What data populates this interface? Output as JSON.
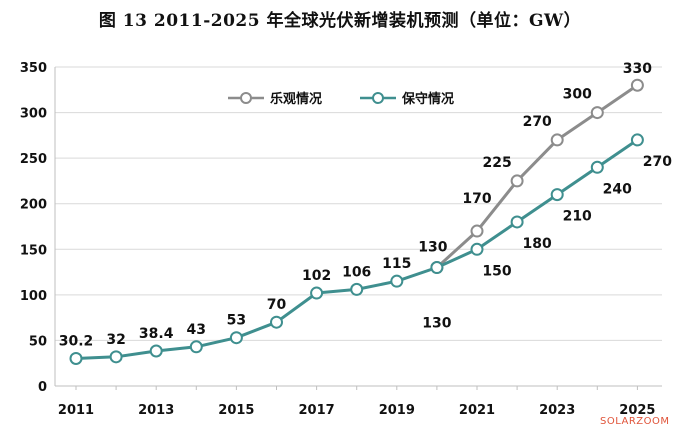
{
  "chart_data": {
    "type": "line",
    "title": "图 13 2011-2025 年全球光伏新增装机预测（单位：GW）",
    "x": [
      2011,
      2012,
      2013,
      2014,
      2015,
      2016,
      2017,
      2018,
      2019,
      2020,
      2021,
      2022,
      2023,
      2024,
      2025
    ],
    "x_tick_labels": [
      "2011",
      "2013",
      "2015",
      "2017",
      "2019",
      "2021",
      "2023",
      "2025"
    ],
    "y_tick_labels": [
      "0",
      "50",
      "100",
      "150",
      "200",
      "250",
      "300",
      "350"
    ],
    "ylim": [
      0,
      350
    ],
    "grid": "horizontal",
    "legend_position": "top-center",
    "series": [
      {
        "name": "乐观情况",
        "color": "#8c8c8c",
        "x": [
          2020,
          2021,
          2022,
          2023,
          2024,
          2025
        ],
        "values": [
          130,
          170,
          225,
          270,
          300,
          330
        ],
        "labels": [
          "",
          "170",
          "225",
          "270",
          "300",
          "330"
        ]
      },
      {
        "name": "保守情况",
        "color": "#3f8f8f",
        "x": [
          2011,
          2012,
          2013,
          2014,
          2015,
          2016,
          2017,
          2018,
          2019,
          2020,
          2021,
          2022,
          2023,
          2024,
          2025
        ],
        "values": [
          30.2,
          32,
          38.4,
          43,
          53,
          70,
          102,
          106,
          115,
          130,
          150,
          180,
          210,
          240,
          270
        ],
        "labels": [
          "30.2",
          "32",
          "38.4",
          "43",
          "53",
          "70",
          "102",
          "106",
          "115",
          "130",
          "150",
          "180",
          "210",
          "240",
          "270"
        ],
        "extra_label": "130"
      }
    ]
  },
  "watermark": "SOLARZOOM"
}
